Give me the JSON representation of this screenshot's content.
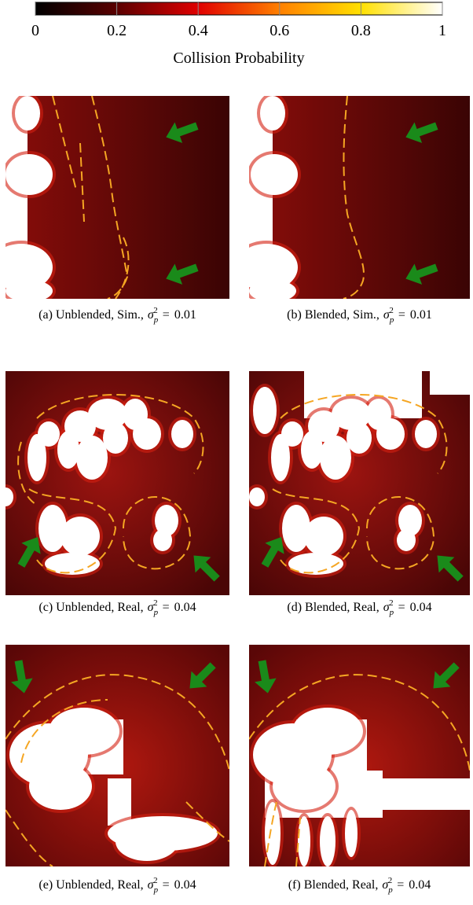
{
  "colorbar": {
    "label": "Collision Probability",
    "lim": [
      0,
      1
    ],
    "ticks": [
      0,
      0.2,
      0.4,
      0.6,
      0.8,
      1
    ]
  },
  "notation": {
    "symbol": "σ",
    "sub": "p",
    "sup": "2",
    "relation": "="
  },
  "panels": [
    {
      "caption": "(a) Unblended, Sim.,",
      "variance": "0.01"
    },
    {
      "caption": "(b) Blended, Sim.,",
      "variance": "0.01"
    },
    {
      "caption": "(c) Unblended, Real,",
      "variance": "0.04"
    },
    {
      "caption": "(d) Blended, Real,",
      "variance": "0.04"
    },
    {
      "caption": "(e) Unblended, Real,",
      "variance": "0.04"
    },
    {
      "caption": "(f) Blended, Real,",
      "variance": "0.04"
    }
  ]
}
